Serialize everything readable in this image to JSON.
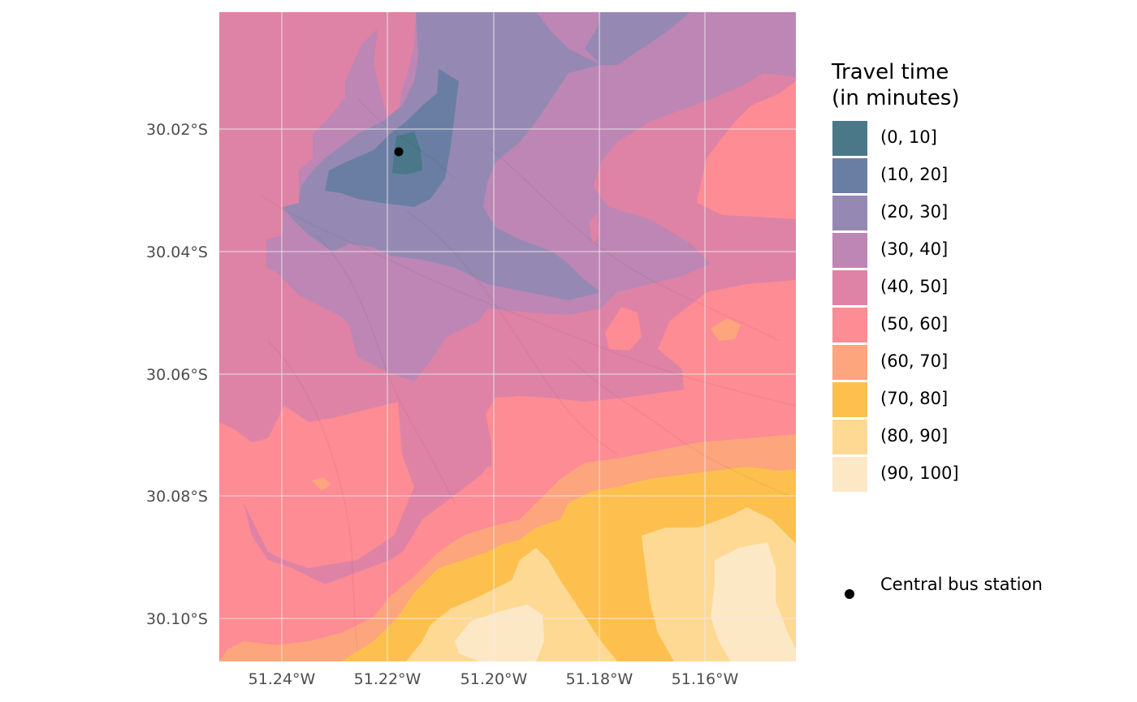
{
  "map": {
    "x_ticks": [
      "51.24°W",
      "51.22°W",
      "51.20°W",
      "51.18°W",
      "51.16°W"
    ],
    "y_ticks": [
      "30.02°S",
      "30.04°S",
      "30.06°S",
      "30.08°S",
      "30.10°S"
    ],
    "station_name": "Central bus station"
  },
  "legend": {
    "title": "Travel time\n(in minutes)",
    "items": [
      {
        "label": "(0, 10]",
        "color": "#4a7888"
      },
      {
        "label": "(10, 20]",
        "color": "#6a7ea3"
      },
      {
        "label": "(20, 30]",
        "color": "#9589b3"
      },
      {
        "label": "(30, 40]",
        "color": "#bd86b4"
      },
      {
        "label": "(40, 50]",
        "color": "#de83a6"
      },
      {
        "label": "(50, 60]",
        "color": "#fd8c94"
      },
      {
        "label": "(60, 70]",
        "color": "#fda57c"
      },
      {
        "label": "(70, 80]",
        "color": "#fdc04e"
      },
      {
        "label": "(80, 90]",
        "color": "#fdd994"
      },
      {
        "label": "(90, 100]",
        "color": "#fde8c6"
      }
    ],
    "station_label": "Central bus station"
  }
}
